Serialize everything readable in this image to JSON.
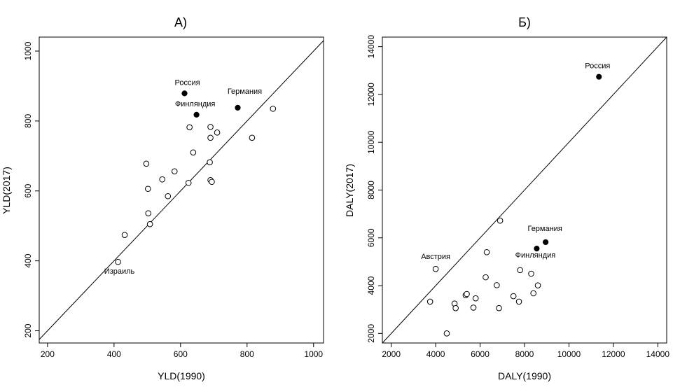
{
  "chart_data": [
    {
      "type": "scatter",
      "title": "A)",
      "xlabel": "YLD(1990)",
      "ylabel": "YLD(2017)",
      "xlim": [
        175,
        1030
      ],
      "ylim": [
        165,
        1040
      ],
      "xticks": [
        200,
        400,
        600,
        800,
        1000
      ],
      "yticks": [
        200,
        400,
        600,
        800,
        1000
      ],
      "identity_line": true,
      "points": [
        {
          "x": 412,
          "y": 397,
          "label": "Израиль",
          "filled": false
        },
        {
          "x": 432,
          "y": 474,
          "filled": false
        },
        {
          "x": 497,
          "y": 678,
          "filled": false
        },
        {
          "x": 502,
          "y": 606,
          "filled": false
        },
        {
          "x": 503,
          "y": 536,
          "filled": false
        },
        {
          "x": 508,
          "y": 505,
          "filled": false
        },
        {
          "x": 545,
          "y": 633,
          "filled": false
        },
        {
          "x": 562,
          "y": 585,
          "filled": false
        },
        {
          "x": 582,
          "y": 656,
          "filled": false
        },
        {
          "x": 612,
          "y": 879,
          "label": "Россия",
          "filled": true
        },
        {
          "x": 624,
          "y": 623,
          "filled": false
        },
        {
          "x": 627,
          "y": 782,
          "filled": false
        },
        {
          "x": 638,
          "y": 710,
          "filled": false
        },
        {
          "x": 648,
          "y": 818,
          "label": "Финляндия",
          "filled": true
        },
        {
          "x": 688,
          "y": 682,
          "filled": false
        },
        {
          "x": 690,
          "y": 783,
          "filled": false
        },
        {
          "x": 690,
          "y": 752,
          "filled": false
        },
        {
          "x": 690,
          "y": 631,
          "filled": false
        },
        {
          "x": 694,
          "y": 626,
          "filled": false
        },
        {
          "x": 710,
          "y": 767,
          "filled": false
        },
        {
          "x": 772,
          "y": 838,
          "label": "Германия",
          "filled": true
        },
        {
          "x": 815,
          "y": 752,
          "filled": false
        },
        {
          "x": 878,
          "y": 835,
          "filled": false
        }
      ]
    },
    {
      "type": "scatter",
      "title": "Б)",
      "xlabel": "DALY(1990)",
      "ylabel": "DALY(2017)",
      "xlim": [
        1600,
        14400
      ],
      "ylim": [
        1600,
        14400
      ],
      "xticks": [
        2000,
        4000,
        6000,
        8000,
        10000,
        12000,
        14000
      ],
      "yticks": [
        2000,
        4000,
        6000,
        8000,
        10000,
        12000,
        14000
      ],
      "identity_line": true,
      "points": [
        {
          "x": 3750,
          "y": 3330,
          "filled": false
        },
        {
          "x": 4000,
          "y": 4700,
          "label": "Австрия",
          "filled": false
        },
        {
          "x": 4500,
          "y": 2000,
          "filled": false
        },
        {
          "x": 4850,
          "y": 3250,
          "filled": false
        },
        {
          "x": 4900,
          "y": 3060,
          "filled": false
        },
        {
          "x": 5350,
          "y": 3600,
          "filled": false
        },
        {
          "x": 5400,
          "y": 3650,
          "filled": false
        },
        {
          "x": 5700,
          "y": 3080,
          "filled": false
        },
        {
          "x": 5800,
          "y": 3470,
          "filled": false
        },
        {
          "x": 6250,
          "y": 4350,
          "filled": false
        },
        {
          "x": 6300,
          "y": 5400,
          "filled": false
        },
        {
          "x": 6750,
          "y": 4020,
          "filled": false
        },
        {
          "x": 6850,
          "y": 3060,
          "filled": false
        },
        {
          "x": 6900,
          "y": 6720,
          "filled": false
        },
        {
          "x": 7500,
          "y": 3560,
          "filled": false
        },
        {
          "x": 7750,
          "y": 3330,
          "filled": false
        },
        {
          "x": 7800,
          "y": 4650,
          "filled": false
        },
        {
          "x": 8300,
          "y": 4500,
          "filled": false
        },
        {
          "x": 8400,
          "y": 3680,
          "filled": false
        },
        {
          "x": 8550,
          "y": 5550,
          "label": "Финляндия",
          "filled": true
        },
        {
          "x": 8600,
          "y": 4010,
          "filled": false
        },
        {
          "x": 8950,
          "y": 5820,
          "label": "Германия",
          "filled": true
        },
        {
          "x": 11350,
          "y": 12740,
          "label": "Россия",
          "filled": true
        }
      ]
    }
  ]
}
